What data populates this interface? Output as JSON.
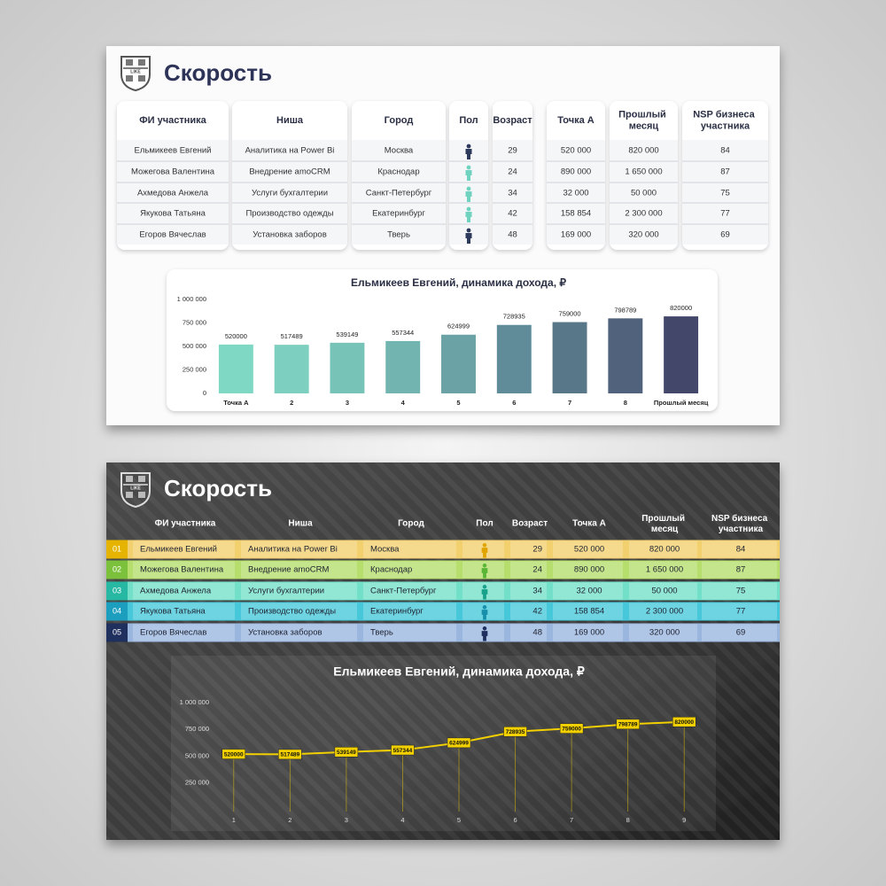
{
  "slides": [
    {
      "title": "Скорость",
      "logo_text": "LIKE",
      "table": {
        "headers": [
          "ФИ участника",
          "Ниша",
          "Город",
          "Пол",
          "Возраст",
          "Точка А",
          "Прошлый месяц",
          "NSP бизнеса участника"
        ],
        "rows": [
          [
            "Ельмикеев Евгений",
            "Аналитика на Power Bi",
            "Москва",
            29,
            "520 000",
            "820 000",
            84
          ],
          [
            "Можегова Валентина",
            "Внедрение amoCRM",
            "Краснодар",
            24,
            "890 000",
            "1 650 000",
            87
          ],
          [
            "Ахмедова Анжела",
            "Услуги бухгалтерии",
            "Санкт-Петербург",
            34,
            "32 000",
            "50 000",
            75
          ],
          [
            "Якукова Татьяна",
            "Производство одежды",
            "Екатеринбург",
            42,
            "158 854",
            "2 300 000",
            77
          ],
          [
            "Егоров Вячеслав",
            "Установка заборов",
            "Тверь",
            48,
            "169 000",
            "320 000",
            69
          ]
        ],
        "icon_colors": [
          "#2e3a5c",
          "#6fd3c0",
          "#6fd3c0",
          "#6fd3c0",
          "#2e3a5c"
        ]
      }
    },
    {
      "title": "Скорость",
      "logo_text": "LIKE",
      "table": {
        "headers": [
          "ФИ участника",
          "Ниша",
          "Город",
          "Пол",
          "Возраст",
          "Точка А",
          "Прошлый месяц",
          "NSP бизнеса участника"
        ],
        "row_numbers": [
          "01",
          "02",
          "03",
          "04",
          "05"
        ],
        "rows": [
          [
            "Ельмикеев Евгений",
            "Аналитика на Power Bi",
            "Москва",
            29,
            "520 000",
            "820 000",
            84
          ],
          [
            "Можегова Валентина",
            "Внедрение amoCRM",
            "Краснодар",
            24,
            "890 000",
            "1 650 000",
            87
          ],
          [
            "Ахмедова Анжела",
            "Услуги бухгалтерии",
            "Санкт-Петербург",
            34,
            "32 000",
            "50 000",
            75
          ],
          [
            "Якукова Татьяна",
            "Производство одежды",
            "Екатеринбург",
            42,
            "158 854",
            "2 300 000",
            77
          ],
          [
            "Егоров Вячеслав",
            "Установка заборов",
            "Тверь",
            48,
            "169 000",
            "320 000",
            69
          ]
        ],
        "row_colors": [
          "#f3d06e",
          "#b5de6c",
          "#72dfc8",
          "#47c8da",
          "#9ab6df"
        ],
        "number_colors": [
          "#e5b400",
          "#7cc13b",
          "#26b8a2",
          "#1c9fbf",
          "#1f2f5e"
        ],
        "icon_colors": [
          "#e0a400",
          "#58b536",
          "#18a18b",
          "#178fab",
          "#1f2f5e"
        ]
      }
    }
  ],
  "chart_data": [
    {
      "type": "bar",
      "title": "Ельмикеев Евгений, динамика дохода, ₽",
      "categories": [
        "Точка А",
        "2",
        "3",
        "4",
        "5",
        "6",
        "7",
        "8",
        "Прошлый месяц"
      ],
      "values": [
        520000,
        517489,
        539149,
        557344,
        624999,
        728935,
        759000,
        798789,
        820000
      ],
      "colors": [
        "#7ed8c3",
        "#7dd0bf",
        "#78c3b7",
        "#72b4af",
        "#6aa2a5",
        "#5f8c98",
        "#587789",
        "#50627c",
        "#43486b"
      ],
      "ylim": [
        0,
        1000000
      ],
      "yticks": [
        0,
        {
          "value": 250000,
          "label": "250 000"
        },
        {
          "value": 500000,
          "label": "500 000"
        },
        {
          "value": 750000,
          "label": "750 000"
        },
        {
          "value": 1000000,
          "label": "1 000 000"
        }
      ]
    },
    {
      "type": "line",
      "title": "Ельмикеев Евгений, динамика дохода, ₽",
      "categories": [
        "1",
        "2",
        "3",
        "4",
        "5",
        "6",
        "7",
        "8",
        "9"
      ],
      "values": [
        520000,
        517489,
        539149,
        557344,
        624999,
        728935,
        759000,
        798789,
        820000
      ],
      "color": "#f2d000",
      "ylim": [
        0,
        1000000
      ],
      "yticks": [
        {
          "value": 250000,
          "label": "250 000"
        },
        {
          "value": 500000,
          "label": "500 000"
        },
        {
          "value": 750000,
          "label": "750 000"
        },
        {
          "value": 1000000,
          "label": "1 000 000"
        }
      ]
    }
  ]
}
